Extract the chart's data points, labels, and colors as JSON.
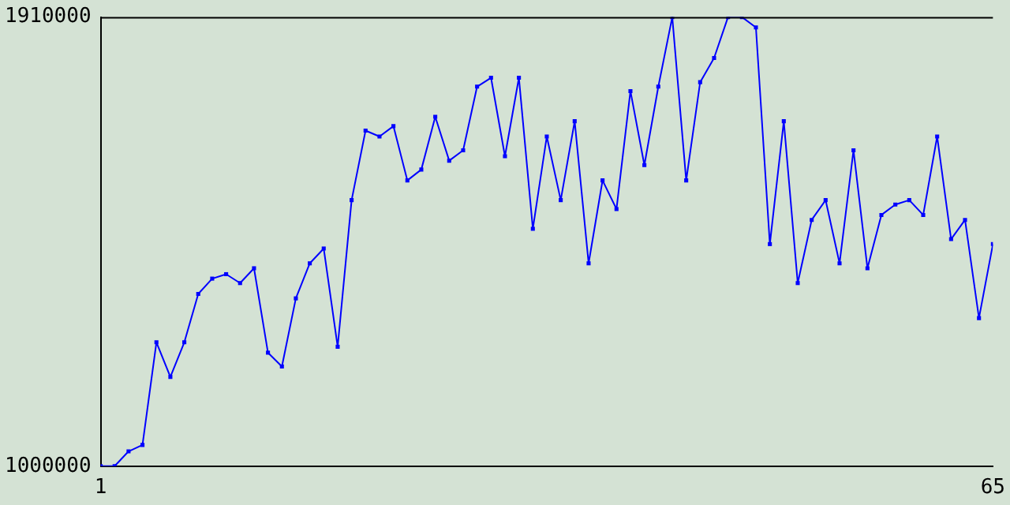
{
  "chart_data": {
    "type": "line",
    "x": [
      1,
      2,
      3,
      4,
      5,
      6,
      7,
      8,
      9,
      10,
      11,
      12,
      13,
      14,
      15,
      16,
      17,
      18,
      19,
      20,
      21,
      22,
      23,
      24,
      25,
      26,
      27,
      28,
      29,
      30,
      31,
      32,
      33,
      34,
      35,
      36,
      37,
      38,
      39,
      40,
      41,
      42,
      43,
      44,
      45,
      46,
      47,
      48,
      49,
      50,
      51,
      52,
      53,
      54,
      55,
      56,
      57,
      58,
      59,
      60,
      61,
      62,
      63,
      64,
      65
    ],
    "series": [
      {
        "color": "#0000ff",
        "values": [
          1000000,
          1000000,
          1030000,
          1043000,
          1251000,
          1181000,
          1251000,
          1349000,
          1380000,
          1389000,
          1371000,
          1401000,
          1230000,
          1202000,
          1340000,
          1411000,
          1441000,
          1242000,
          1539000,
          1680000,
          1668000,
          1689000,
          1579000,
          1601000,
          1708000,
          1619000,
          1640000,
          1769000,
          1787000,
          1628000,
          1787000,
          1481000,
          1668000,
          1539000,
          1699000,
          1411000,
          1579000,
          1521000,
          1760000,
          1610000,
          1769000,
          1910000,
          1579000,
          1778000,
          1827000,
          1910000,
          1910000,
          1889000,
          1450000,
          1699000,
          1371000,
          1499000,
          1539000,
          1411000,
          1640000,
          1401000,
          1509000,
          1530000,
          1539000,
          1509000,
          1668000,
          1460000,
          1499000,
          1300000,
          1450000
        ]
      }
    ],
    "xlim": [
      1,
      65
    ],
    "xticks": [
      1,
      65
    ],
    "ylim": [
      1000000,
      1910000
    ],
    "yticks": [
      1000000,
      1910000
    ],
    "grid": false,
    "legend": false,
    "marker": "square",
    "line_style": "solid"
  }
}
